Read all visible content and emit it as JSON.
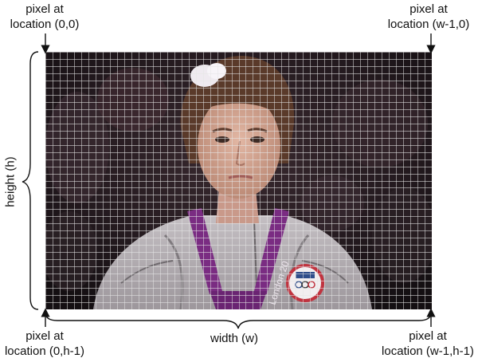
{
  "labels": {
    "top_left": {
      "line1": "pixel at",
      "line2": "location (0,0)"
    },
    "top_right": {
      "line1": "pixel at",
      "line2": "location (w-1,0)"
    },
    "bottom_left": {
      "line1": "pixel at",
      "line2": "location (0,h-1)"
    },
    "bottom_right": {
      "line1": "pixel at",
      "line2": "location (w-1,h-1)"
    },
    "height": "height (h)",
    "width": "width (w)"
  },
  "image": {
    "grid_columns": 54,
    "grid_rows": 36,
    "grid_color": "#e6e6e6",
    "medal_text": "London 20"
  },
  "colors": {
    "annotation": "#111111",
    "medal_ribbon": "#7a2c82",
    "jacket": "#b7b2b6",
    "background_dark": "#1a1416"
  }
}
